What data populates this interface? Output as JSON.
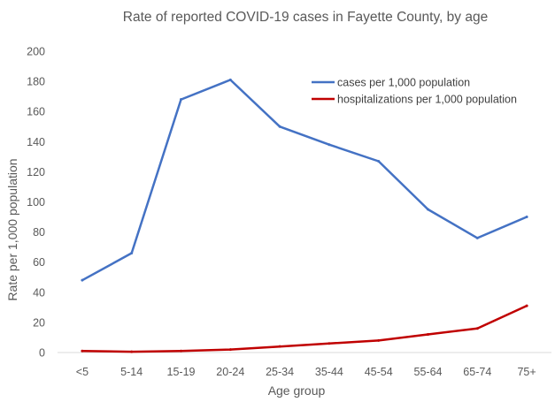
{
  "colors": {
    "cases": "#4472C4",
    "hospitalizations": "#C00000",
    "axis": "#D9D9D9",
    "text": "#595959"
  },
  "chart_data": {
    "type": "line",
    "title": "Rate of reported COVID-19 cases in Fayette County, by age",
    "xlabel": "Age group",
    "ylabel": "Rate per 1,000 population",
    "categories": [
      "<5",
      "5-14",
      "15-19",
      "20-24",
      "25-34",
      "35-44",
      "45-54",
      "55-64",
      "65-74",
      "75+"
    ],
    "yticks": [
      "0",
      "20",
      "40",
      "60",
      "80",
      "100",
      "120",
      "140",
      "160",
      "180",
      "200"
    ],
    "ylim": [
      0,
      200
    ],
    "grid": false,
    "legend": "top-right",
    "series": [
      {
        "name": "cases per 1,000 population",
        "color": "#4472C4",
        "values": [
          48,
          66,
          168,
          181,
          150,
          138,
          127,
          95,
          76,
          90
        ]
      },
      {
        "name": "hospitalizations per 1,000 population",
        "color": "#C00000",
        "values": [
          1,
          0.5,
          1,
          2,
          4,
          6,
          8,
          12,
          16,
          31
        ]
      }
    ]
  }
}
